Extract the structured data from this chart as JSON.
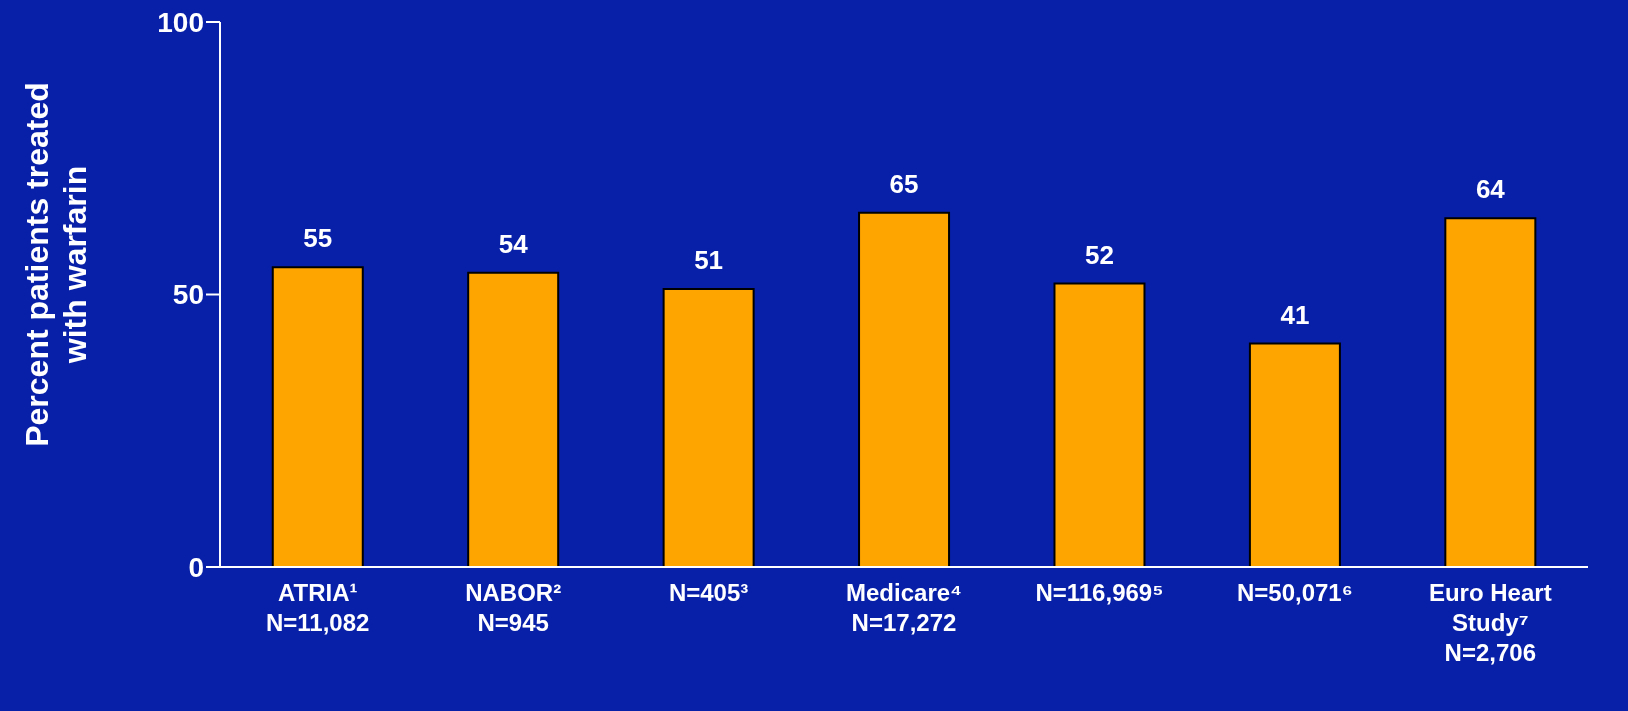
{
  "chart_data": {
    "type": "bar",
    "ylabel": "Percent patients treated\nwith warfarin",
    "categories": [
      "ATRIA¹\nN=11,082",
      "NABOR²\nN=945",
      "N=405³",
      "Medicare⁴\nN=17,272",
      "N=116,969⁵",
      "N=50,071⁶",
      "Euro Heart\nStudy⁷\nN=2,706"
    ],
    "values": [
      55,
      54,
      51,
      65,
      52,
      41,
      64
    ],
    "color": "#ffa500",
    "ylim": [
      0,
      100
    ],
    "yticks": [
      0,
      50,
      100
    ],
    "grid": false,
    "data_labels": true
  }
}
